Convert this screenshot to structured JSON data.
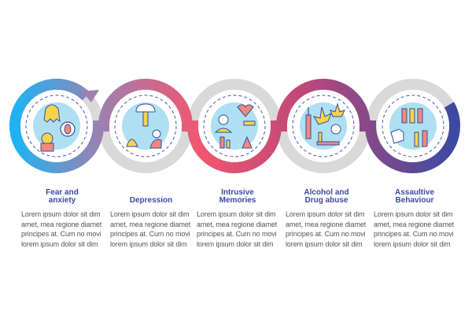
{
  "steps": [
    {
      "title": "Fear and anxiety",
      "icon": "ghost-scared-person-icon",
      "body": [
        "Lorem ipsum dolor sit dim",
        "amet, mea regione diamet",
        "principes at. Cum no movi",
        "lorem ipsum dolor sit dim"
      ]
    },
    {
      "title": "Depression",
      "icon": "crying-person-icon",
      "body": [
        "Lorem ipsum dolor sit dim",
        "amet, mea regione diamet",
        "principes at. Cum no movi",
        "lorem ipsum dolor sit dim"
      ]
    },
    {
      "title": "Intrusive Memories",
      "icon": "broken-heart-memories-icon",
      "body": [
        "Lorem ipsum dolor sit dim",
        "amet, mea regione diamet",
        "principes at. Cum no movi",
        "lorem ipsum dolor sit dim"
      ]
    },
    {
      "title": "Alcohol and Drug abuse",
      "icon": "syringe-cannabis-bottle-icon",
      "body": [
        "Lorem ipsum dolor sit dim",
        "amet, mea regione diamet",
        "principes at. Cum no movi",
        "lorem ipsum dolor sit dim"
      ]
    },
    {
      "title": "Assaultive Behaviour",
      "icon": "fist-fighting-people-icon",
      "body": [
        "Lorem ipsum dolor sit dim",
        "amet, mea regione diamet",
        "principes at. Cum no movi",
        "lorem ipsum dolor sit dim"
      ]
    }
  ],
  "colors": {
    "ring_gray": "#d9d9d9",
    "gradient": [
      "#1fb3f2",
      "#a07fae",
      "#f2566f",
      "#c04878",
      "#3b4aa2"
    ],
    "title": "#3b49a6",
    "blob": "#aee0f2",
    "dash": "#4a58ae"
  }
}
